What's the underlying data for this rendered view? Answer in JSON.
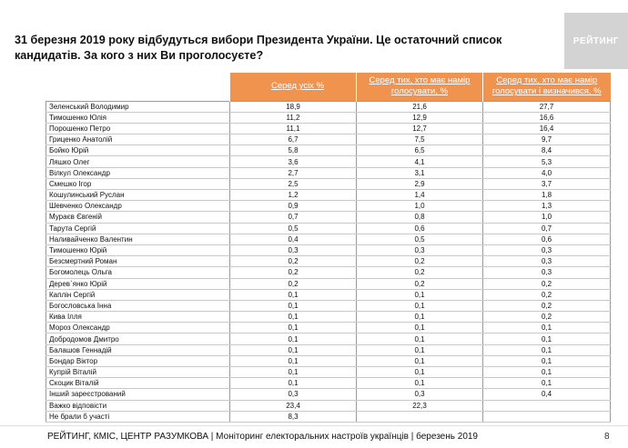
{
  "title": "31 березня 2019 року відбудуться вибори Президента України. Це остаточний список кандидатів. За кого з них Ви проголосуєте?",
  "logo": "РЕЙТИНГ",
  "table": {
    "headers": [
      "Серед усіх %",
      "Серед тих, хто має намір голосувати, %",
      "Серед тих, хто має намір голосувати і визначився, %"
    ],
    "rows": [
      {
        "name": "Зеленський Володимир",
        "all": "18,9",
        "voters": "21,6",
        "decided": "27,7"
      },
      {
        "name": "Тимошенко Юлія",
        "all": "11,2",
        "voters": "12,9",
        "decided": "16,6"
      },
      {
        "name": "Порошенко Петро",
        "all": "11,1",
        "voters": "12,7",
        "decided": "16,4"
      },
      {
        "name": "Гриценко Анатолій",
        "all": "6,7",
        "voters": "7,5",
        "decided": "9,7"
      },
      {
        "name": "Бойко Юрій",
        "all": "5,8",
        "voters": "6,5",
        "decided": "8,4"
      },
      {
        "name": "Ляшко Олег",
        "all": "3,6",
        "voters": "4,1",
        "decided": "5,3"
      },
      {
        "name": "Вілкул Олександр",
        "all": "2,7",
        "voters": "3,1",
        "decided": "4,0"
      },
      {
        "name": "Смешко Ігор",
        "all": "2,5",
        "voters": "2,9",
        "decided": "3,7"
      },
      {
        "name": "Кошулинський Руслан",
        "all": "1,2",
        "voters": "1,4",
        "decided": "1,8"
      },
      {
        "name": "Шевченко Олександр",
        "all": "0,9",
        "voters": "1,0",
        "decided": "1,3"
      },
      {
        "name": "Мураєв Євгеній",
        "all": "0,7",
        "voters": "0,8",
        "decided": "1,0"
      },
      {
        "name": "Тарута Сергій",
        "all": "0,5",
        "voters": "0,6",
        "decided": "0,7"
      },
      {
        "name": "Наливайченко Валентин",
        "all": "0,4",
        "voters": "0,5",
        "decided": "0,6"
      },
      {
        "name": "Тимошенко Юрій",
        "all": "0,3",
        "voters": "0,3",
        "decided": "0,3"
      },
      {
        "name": "Безсмертний Роман",
        "all": "0,2",
        "voters": "0,2",
        "decided": "0,3"
      },
      {
        "name": "Богомолець Ольга",
        "all": "0,2",
        "voters": "0,2",
        "decided": "0,3"
      },
      {
        "name": "Дерев`янко Юрій",
        "all": "0,2",
        "voters": "0,2",
        "decided": "0,2"
      },
      {
        "name": "Каплін Сергій",
        "all": "0,1",
        "voters": "0,1",
        "decided": "0,2"
      },
      {
        "name": "Богословська Інна",
        "all": "0,1",
        "voters": "0,1",
        "decided": "0,2"
      },
      {
        "name": "Кива Ілля",
        "all": "0,1",
        "voters": "0,1",
        "decided": "0,2"
      },
      {
        "name": "Мороз Олександр",
        "all": "0,1",
        "voters": "0,1",
        "decided": "0,1"
      },
      {
        "name": "Добродомов Дмитро",
        "all": "0,1",
        "voters": "0,1",
        "decided": "0,1"
      },
      {
        "name": "Балашов Геннадій",
        "all": "0,1",
        "voters": "0,1",
        "decided": "0,1"
      },
      {
        "name": "Бондар Віктор",
        "all": "0,1",
        "voters": "0,1",
        "decided": "0,1"
      },
      {
        "name": "Купрій Віталій",
        "all": "0,1",
        "voters": "0,1",
        "decided": "0,1"
      },
      {
        "name": "Скоцик Віталій",
        "all": "0,1",
        "voters": "0,1",
        "decided": "0,1"
      },
      {
        "name": "Інший зареєстрований",
        "all": "0,3",
        "voters": "0,3",
        "decided": "0,4"
      },
      {
        "name": "Важко відповісти",
        "all": "23,4",
        "voters": "22,3",
        "decided": ""
      },
      {
        "name": "Не брали б участі",
        "all": "8,3",
        "voters": "",
        "decided": ""
      }
    ]
  },
  "footer": {
    "sources": "РЕЙТИНГ, КМІС, ЦЕНТР РАЗУМКОВА",
    "description": " | Моніторинг електоральних настроїв українців | березень 2019",
    "page": "8"
  }
}
